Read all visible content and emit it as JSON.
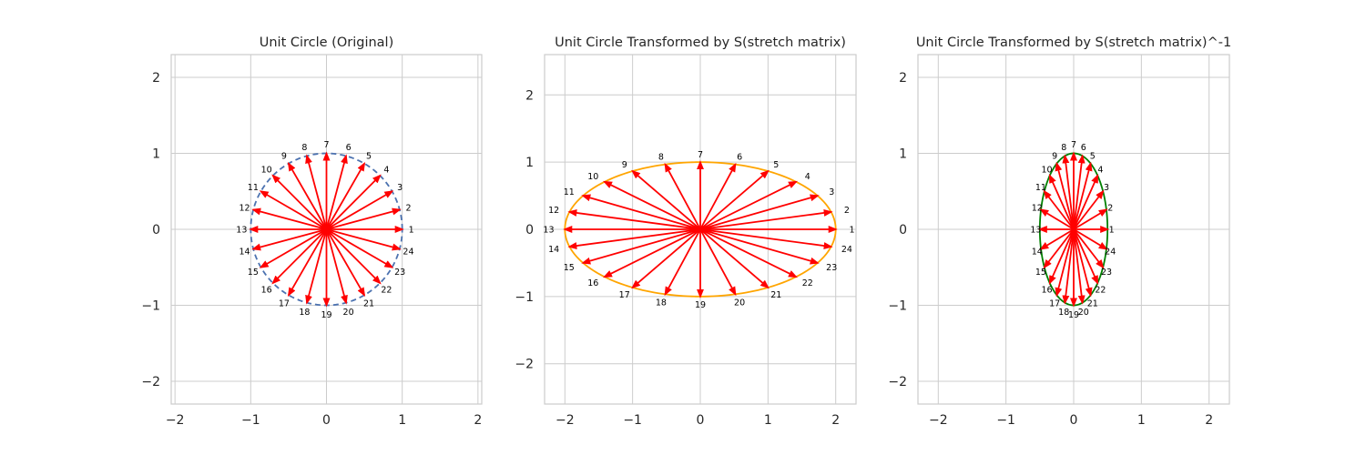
{
  "chart_data": [
    {
      "type": "line",
      "title": "Unit Circle (Original)",
      "xlim": [
        -2.05,
        2.05
      ],
      "ylim": [
        -2.3,
        2.3
      ],
      "xticks": [
        -2,
        -1,
        0,
        1,
        2
      ],
      "yticks": [
        -2,
        -1,
        0,
        1,
        2
      ],
      "grid": true,
      "transform": [
        [
          1,
          0
        ],
        [
          0,
          1
        ]
      ],
      "curve_color": "#4c72b0",
      "curve_style": "dashed",
      "arrow_color": "#ff0000",
      "point_labels": [
        "1",
        "2",
        "3",
        "4",
        "5",
        "6",
        "7",
        "8",
        "9",
        "10",
        "11",
        "12",
        "13",
        "14",
        "15",
        "16",
        "17",
        "18",
        "19",
        "20",
        "21",
        "22",
        "23",
        "24"
      ]
    },
    {
      "type": "line",
      "title": "Unit Circle Transformed by S(stretch matrix)",
      "xlim": [
        -2.3,
        2.3
      ],
      "ylim": [
        -2.6,
        2.6
      ],
      "xticks": [
        -2,
        -1,
        0,
        1,
        2
      ],
      "yticks": [
        -2,
        -1,
        0,
        1,
        2
      ],
      "grid": true,
      "transform": [
        [
          2,
          0
        ],
        [
          0,
          1
        ]
      ],
      "curve_color": "#ffa500",
      "curve_style": "solid",
      "arrow_color": "#ff0000",
      "point_labels": [
        "1",
        "2",
        "3",
        "4",
        "5",
        "6",
        "7",
        "8",
        "9",
        "10",
        "11",
        "12",
        "13",
        "14",
        "15",
        "16",
        "17",
        "18",
        "19",
        "20",
        "21",
        "22",
        "23",
        "24"
      ]
    },
    {
      "type": "line",
      "title": "Unit Circle Transformed by S(stretch matrix)^-1",
      "xlim": [
        -2.3,
        2.3
      ],
      "ylim": [
        -2.3,
        2.3
      ],
      "xticks": [
        -2,
        -1,
        0,
        1,
        2
      ],
      "yticks": [
        -2,
        -1,
        0,
        1,
        2
      ],
      "grid": true,
      "transform": [
        [
          0.5,
          0
        ],
        [
          0,
          1
        ]
      ],
      "curve_color": "#008000",
      "curve_style": "solid",
      "arrow_color": "#ff0000",
      "point_labels": [
        "1",
        "2",
        "3",
        "4",
        "5",
        "6",
        "7",
        "8",
        "9",
        "10",
        "11",
        "12",
        "13",
        "14",
        "15",
        "16",
        "17",
        "18",
        "19",
        "20",
        "21",
        "22",
        "23",
        "24"
      ]
    }
  ]
}
